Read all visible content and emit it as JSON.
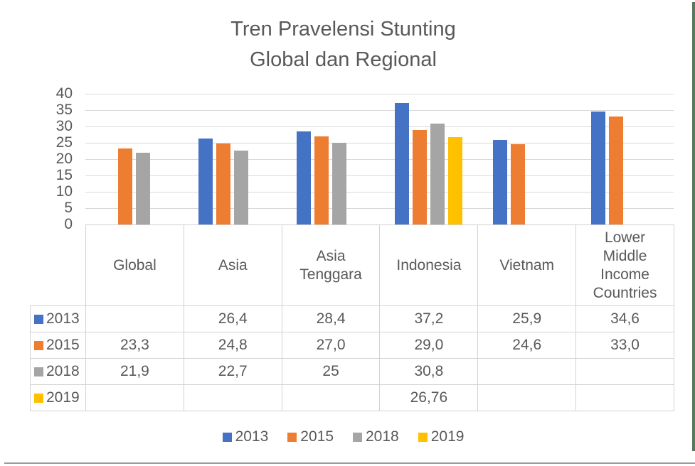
{
  "title": {
    "line1": "Tren Pravelensi Stunting",
    "line2": "Global dan Regional"
  },
  "chart_data": {
    "type": "bar",
    "title": "Tren Pravelensi Stunting Global dan Regional",
    "categories": [
      "Global",
      "Asia",
      "Asia Tenggara",
      "Indonesia",
      "Vietnam",
      "Lower Middle Income Countries"
    ],
    "series": [
      {
        "name": "2013",
        "color": "#4472C4",
        "values": [
          null,
          26.4,
          28.4,
          37.2,
          25.9,
          34.6
        ],
        "display": [
          "",
          "26,4",
          "28,4",
          "37,2",
          "25,9",
          "34,6"
        ]
      },
      {
        "name": "2015",
        "color": "#ED7D31",
        "values": [
          23.3,
          24.8,
          27.0,
          29.0,
          24.6,
          33.0
        ],
        "display": [
          "23,3",
          "24,8",
          "27,0",
          "29,0",
          "24,6",
          "33,0"
        ]
      },
      {
        "name": "2018",
        "color": "#A5A5A5",
        "values": [
          21.9,
          22.7,
          25,
          30.8,
          null,
          null
        ],
        "display": [
          "21,9",
          "22,7",
          "25",
          "30,8",
          "",
          ""
        ]
      },
      {
        "name": "2019",
        "color": "#FFC000",
        "values": [
          null,
          null,
          null,
          26.76,
          null,
          null
        ],
        "display": [
          "",
          "",
          "",
          "26,76",
          "",
          ""
        ]
      }
    ],
    "ylim": [
      0,
      40
    ],
    "yticks": [
      0,
      5,
      10,
      15,
      20,
      25,
      30,
      35,
      40
    ],
    "grid": true,
    "legend_position": "bottom",
    "data_table_shown": true
  },
  "colors": {
    "text": "#595959",
    "gridline": "#D9D9D9",
    "table_border": "#D2D2D2",
    "frame_bottom_line": "#9b9b9b",
    "right_edge_strip": "#587a5c"
  }
}
